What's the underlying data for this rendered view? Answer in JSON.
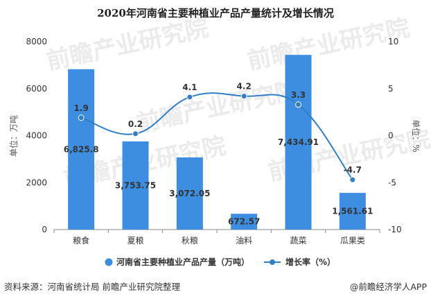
{
  "chart_data": {
    "type": "bar+line",
    "title": "2020年河南省主要种植业产品产量统计及增长情况",
    "categories": [
      "粮食",
      "夏粮",
      "秋粮",
      "油料",
      "蔬菜",
      "瓜果类"
    ],
    "bar_series": {
      "name": "河南省主要种植业产品产量（万吨）",
      "values": [
        6825.8,
        3753.75,
        3072.05,
        672.57,
        7434.91,
        1561.61
      ],
      "labels": [
        "6,825.8",
        "3,753.75",
        "3,072.05",
        "672.57",
        "7,434.91",
        "1,561.61"
      ],
      "color": "#3d8ee0"
    },
    "line_series": {
      "name": "增长率（%）",
      "values": [
        1.9,
        0.2,
        4.1,
        4.2,
        3.3,
        -4.7
      ],
      "labels": [
        "1.9",
        "0.2",
        "4.1",
        "4.2",
        "3.3",
        "-4.7"
      ],
      "color": "#2f7fc8"
    },
    "y_left": {
      "label": "单位：万吨",
      "min": 0,
      "max": 8000,
      "ticks": [
        "0",
        "2000",
        "4000",
        "6000",
        "8000"
      ]
    },
    "y_right": {
      "label": "单位：%",
      "min": -10,
      "max": 10,
      "ticks": [
        "-10",
        "-5",
        "0",
        "5",
        "10"
      ]
    },
    "legend_position": "bottom"
  },
  "footer": {
    "source": "资料来源：河南省统计局 前瞻产业研究院整理",
    "credit": "@前瞻经济学人APP"
  },
  "watermark_text": "前瞻产业研究院"
}
